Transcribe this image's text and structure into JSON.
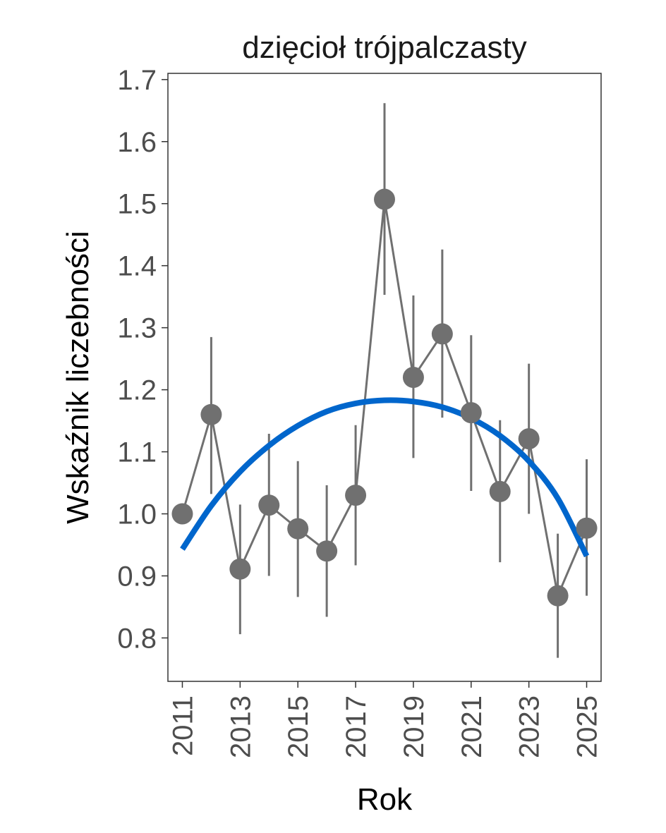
{
  "chart_data": {
    "type": "line",
    "title": "dzięcioł trójpalczasty",
    "xlabel": "Rok",
    "ylabel": "Wskaźnik liczebności",
    "xlim": [
      2010.5,
      2025.5
    ],
    "ylim": [
      0.73,
      1.71
    ],
    "x_ticks": [
      "2011",
      "2013",
      "2015",
      "2017",
      "2019",
      "2021",
      "2023",
      "2025"
    ],
    "y_ticks": [
      "0.8",
      "0.9",
      "1.0",
      "1.1",
      "1.2",
      "1.3",
      "1.4",
      "1.5",
      "1.6",
      "1.7"
    ],
    "grid": false,
    "legend": "none",
    "series": [
      {
        "type": "point-line-errorbar",
        "x": [
          2011,
          2012,
          2013,
          2014,
          2015,
          2016,
          2017,
          2018,
          2019,
          2020,
          2021,
          2022,
          2023,
          2024,
          2025
        ],
        "values": [
          1.0,
          1.16,
          0.911,
          1.014,
          0.976,
          0.94,
          1.03,
          1.507,
          1.22,
          1.29,
          1.163,
          1.036,
          1.121,
          0.868,
          0.977
        ],
        "lower": [
          1.0,
          1.032,
          0.806,
          0.9,
          0.866,
          0.834,
          0.917,
          1.353,
          1.09,
          1.155,
          1.037,
          0.922,
          1.0,
          0.768,
          0.868
        ],
        "upper": [
          1.0,
          1.285,
          1.015,
          1.129,
          1.085,
          1.046,
          1.143,
          1.662,
          1.352,
          1.426,
          1.288,
          1.151,
          1.242,
          0.968,
          1.088
        ],
        "color": "#707070"
      },
      {
        "type": "trend",
        "x": [
          2011,
          2012,
          2013,
          2014,
          2015,
          2016,
          2017,
          2018,
          2019,
          2020,
          2021,
          2022,
          2023,
          2024,
          2025
        ],
        "values": [
          0.943,
          1.013,
          1.068,
          1.11,
          1.142,
          1.165,
          1.178,
          1.183,
          1.181,
          1.172,
          1.154,
          1.126,
          1.085,
          1.025,
          0.932
        ],
        "color": "#0066cc"
      }
    ]
  }
}
